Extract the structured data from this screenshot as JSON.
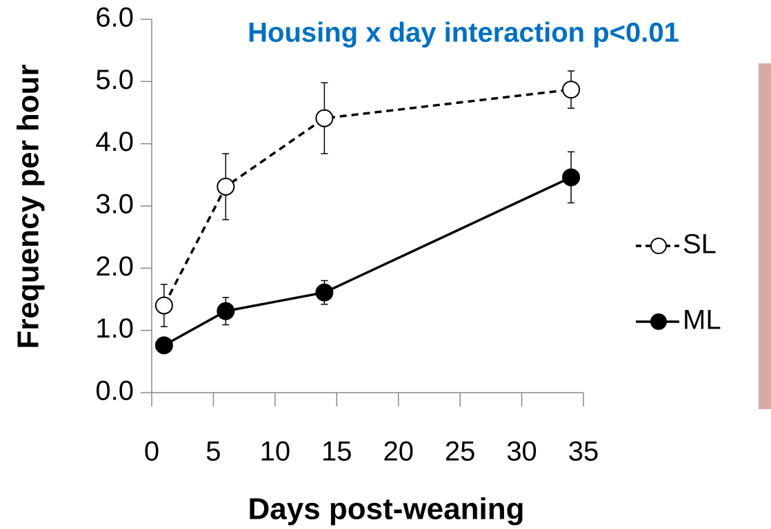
{
  "chart_data": {
    "type": "line",
    "title": "Housing x day interaction p<0.01",
    "x_label": "Days post-weaning",
    "y_label": "Frequency per hour",
    "xlim": [
      0,
      35
    ],
    "xticks": [
      0,
      5,
      10,
      15,
      20,
      25,
      30,
      35
    ],
    "ylim": [
      0,
      6
    ],
    "yticks": [
      {
        "value": 0,
        "label": "0.0"
      },
      {
        "value": 1,
        "label": "1.0"
      },
      {
        "value": 2,
        "label": "2.0"
      },
      {
        "value": 3,
        "label": "3.0"
      },
      {
        "value": 4,
        "label": "4.0"
      },
      {
        "value": 5,
        "label": "5.0"
      },
      {
        "value": 6,
        "label": "6.0"
      }
    ],
    "x": [
      1,
      6,
      14,
      34
    ],
    "legend": "right",
    "series": [
      {
        "name": "SL",
        "color": "#000000",
        "marker_fill": "#ffffff",
        "line_style": "dashed",
        "values": [
          1.4,
          3.31,
          4.41,
          4.87
        ],
        "errors": [
          0.34,
          0.53,
          0.57,
          0.3
        ]
      },
      {
        "name": "ML",
        "color": "#000000",
        "marker_fill": "#000000",
        "line_style": "solid",
        "values": [
          0.76,
          1.31,
          1.61,
          3.46
        ],
        "errors": [
          0.05,
          0.22,
          0.19,
          0.41
        ]
      }
    ]
  }
}
